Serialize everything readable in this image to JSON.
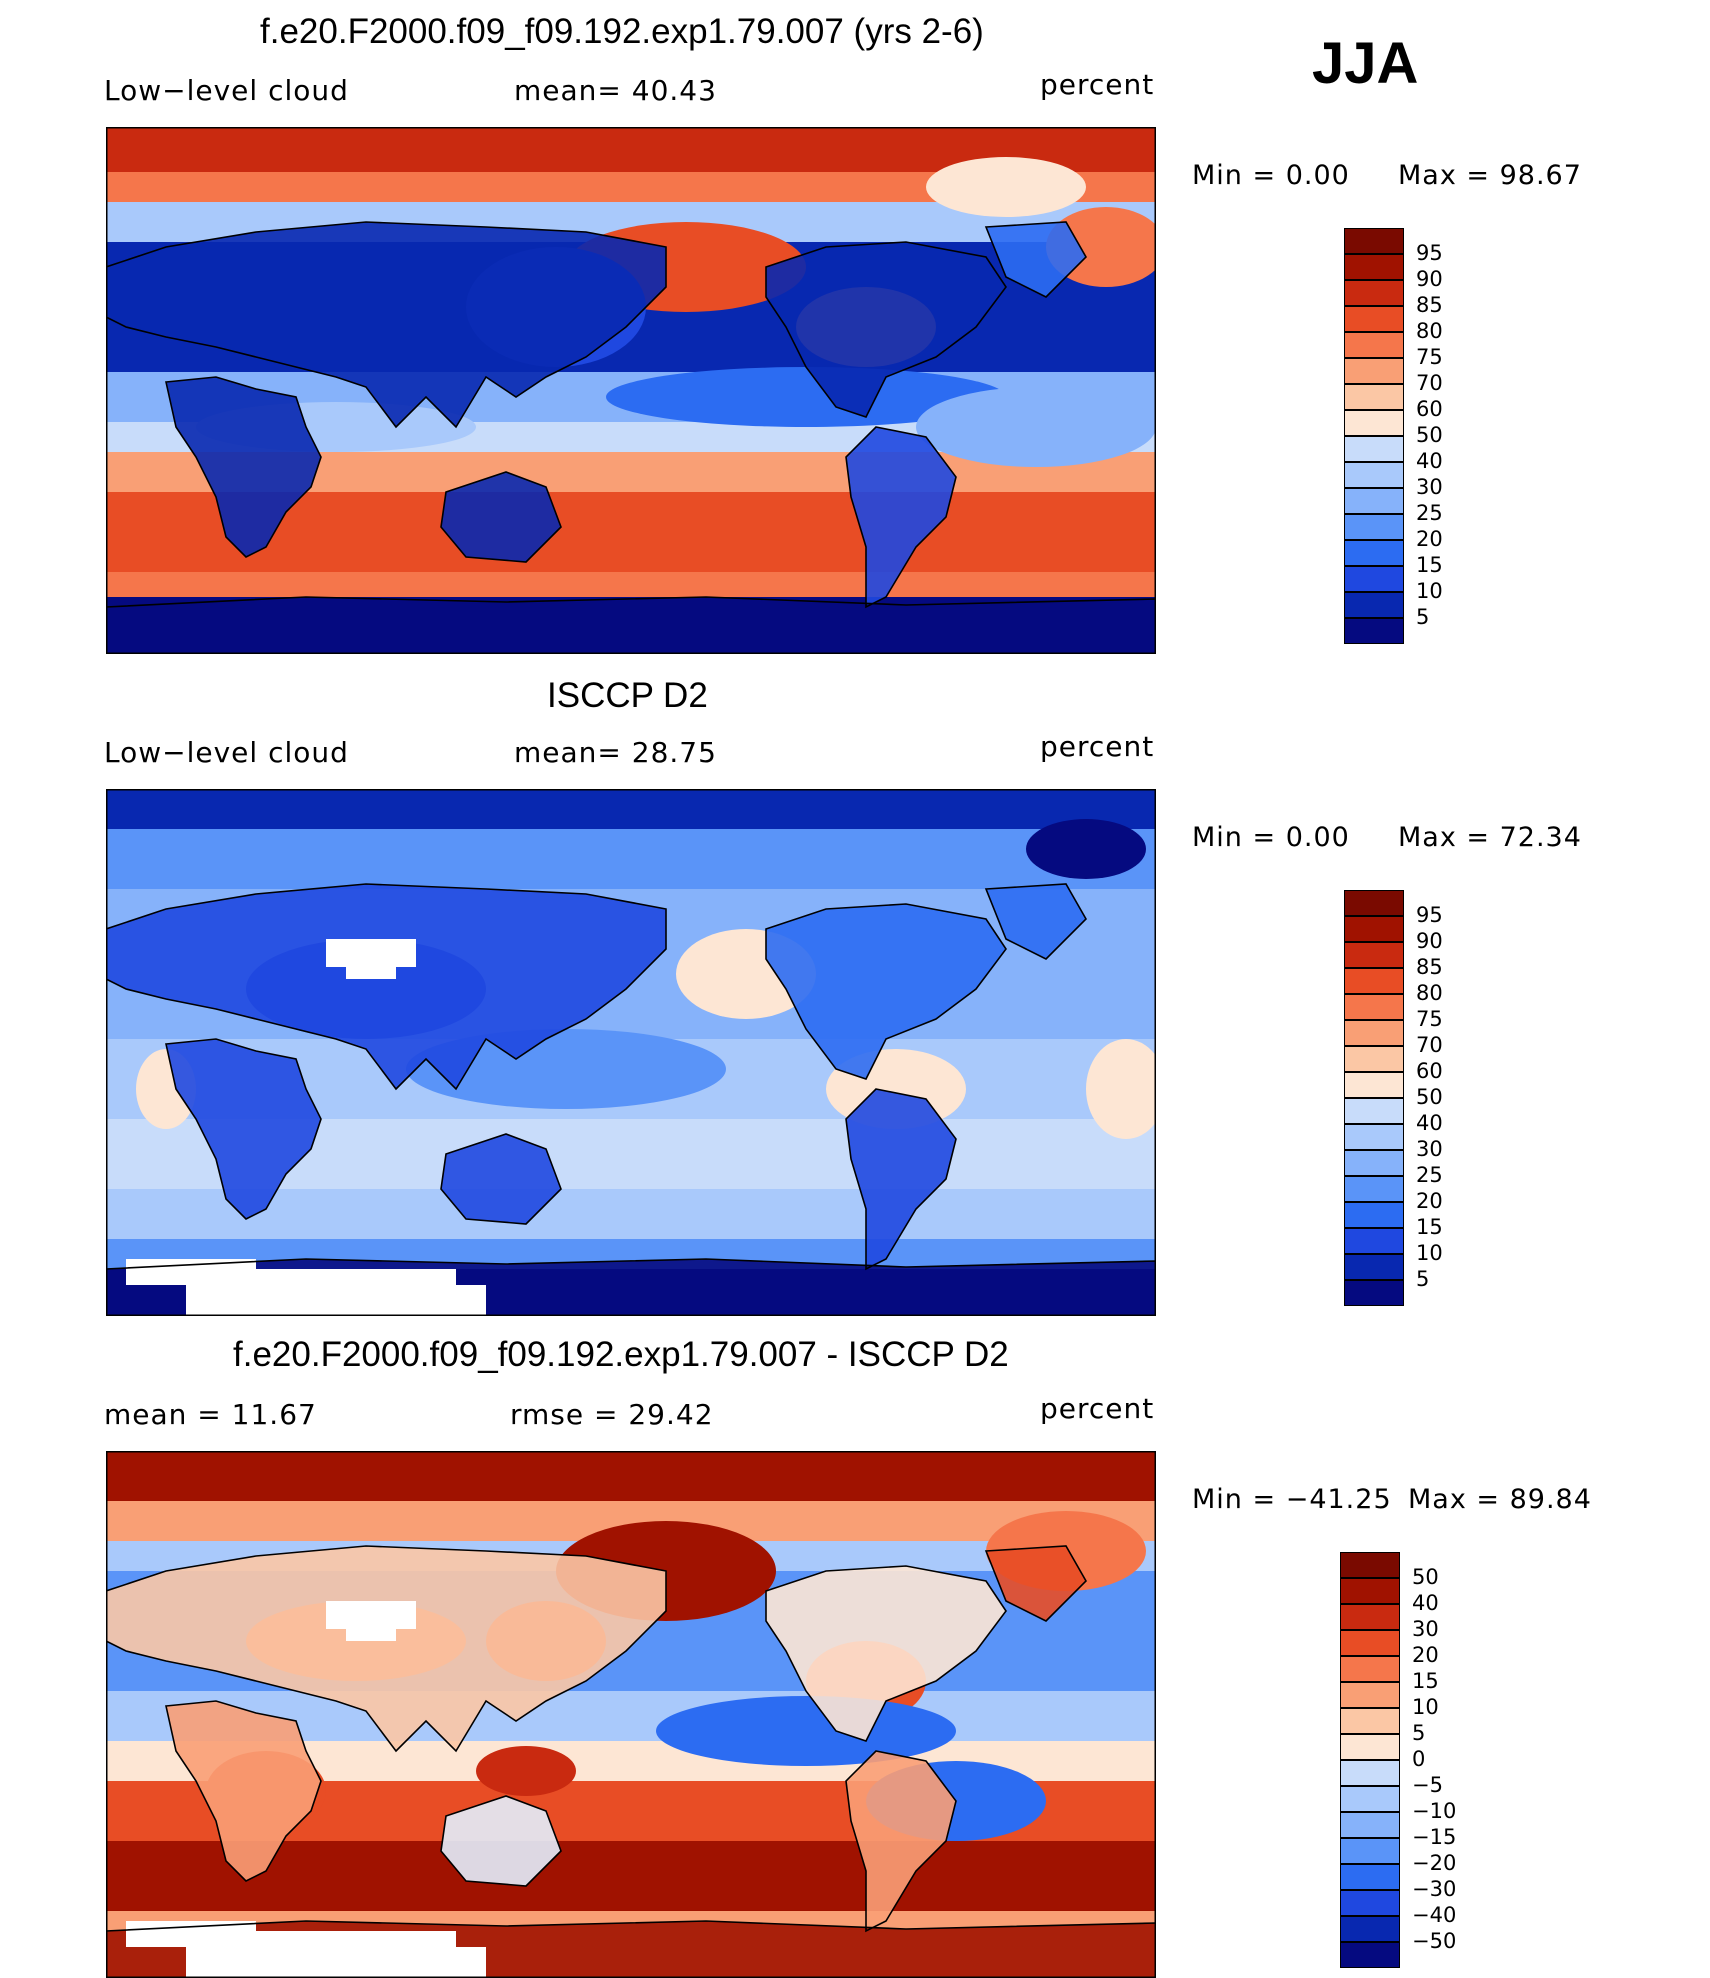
{
  "season": "JJA",
  "colors": {
    "cmap11": [
      "#050a80",
      "#0828b0",
      "#1f48e0",
      "#2c6cf2",
      "#5a94f8",
      "#86b2fa",
      "#a9c9fb",
      "#c8dcfa",
      "#e3eefc",
      "#fde6d4",
      "#fbc7a5",
      "#f99f75",
      "#f5764b",
      "#e84d25",
      "#c92a10",
      "#a01200",
      "#7a0a00"
    ],
    "mask": "#ffffff",
    "coast": "#000000"
  },
  "panels": [
    {
      "title": "f.e20.F2000.f09_f09.192.exp1.79.007 (yrs 2-6)",
      "left_label": "Low−level cloud",
      "center_label": "mean=   40.43",
      "units": "percent",
      "min_text": "Min  =      0.00",
      "max_text": "Max  =     98.67",
      "colorbar": [
        "95",
        "90",
        "85",
        "80",
        "75",
        "70",
        "60",
        "50",
        "40",
        "30",
        "25",
        "20",
        "15",
        "10",
        "5"
      ]
    },
    {
      "title": "ISCCP D2",
      "left_label": "Low−level cloud",
      "center_label": "mean=   28.75",
      "units": "percent",
      "min_text": "Min  =      0.00",
      "max_text": "Max  =     72.34",
      "colorbar": [
        "95",
        "90",
        "85",
        "80",
        "75",
        "70",
        "60",
        "50",
        "40",
        "30",
        "25",
        "20",
        "15",
        "10",
        "5"
      ]
    },
    {
      "title": "f.e20.F2000.f09_f09.192.exp1.79.007 - ISCCP D2",
      "left_label": "mean  =     11.67",
      "center_label": "rmse  =     29.42",
      "units": "percent",
      "min_text": "Min  =  −41.25",
      "max_text": "Max  =     89.84",
      "colorbar": [
        "50",
        "40",
        "30",
        "20",
        "15",
        "10",
        "5",
        "0",
        "−5",
        "−10",
        "−15",
        "−20",
        "−30",
        "−40",
        "−50"
      ]
    }
  ]
}
